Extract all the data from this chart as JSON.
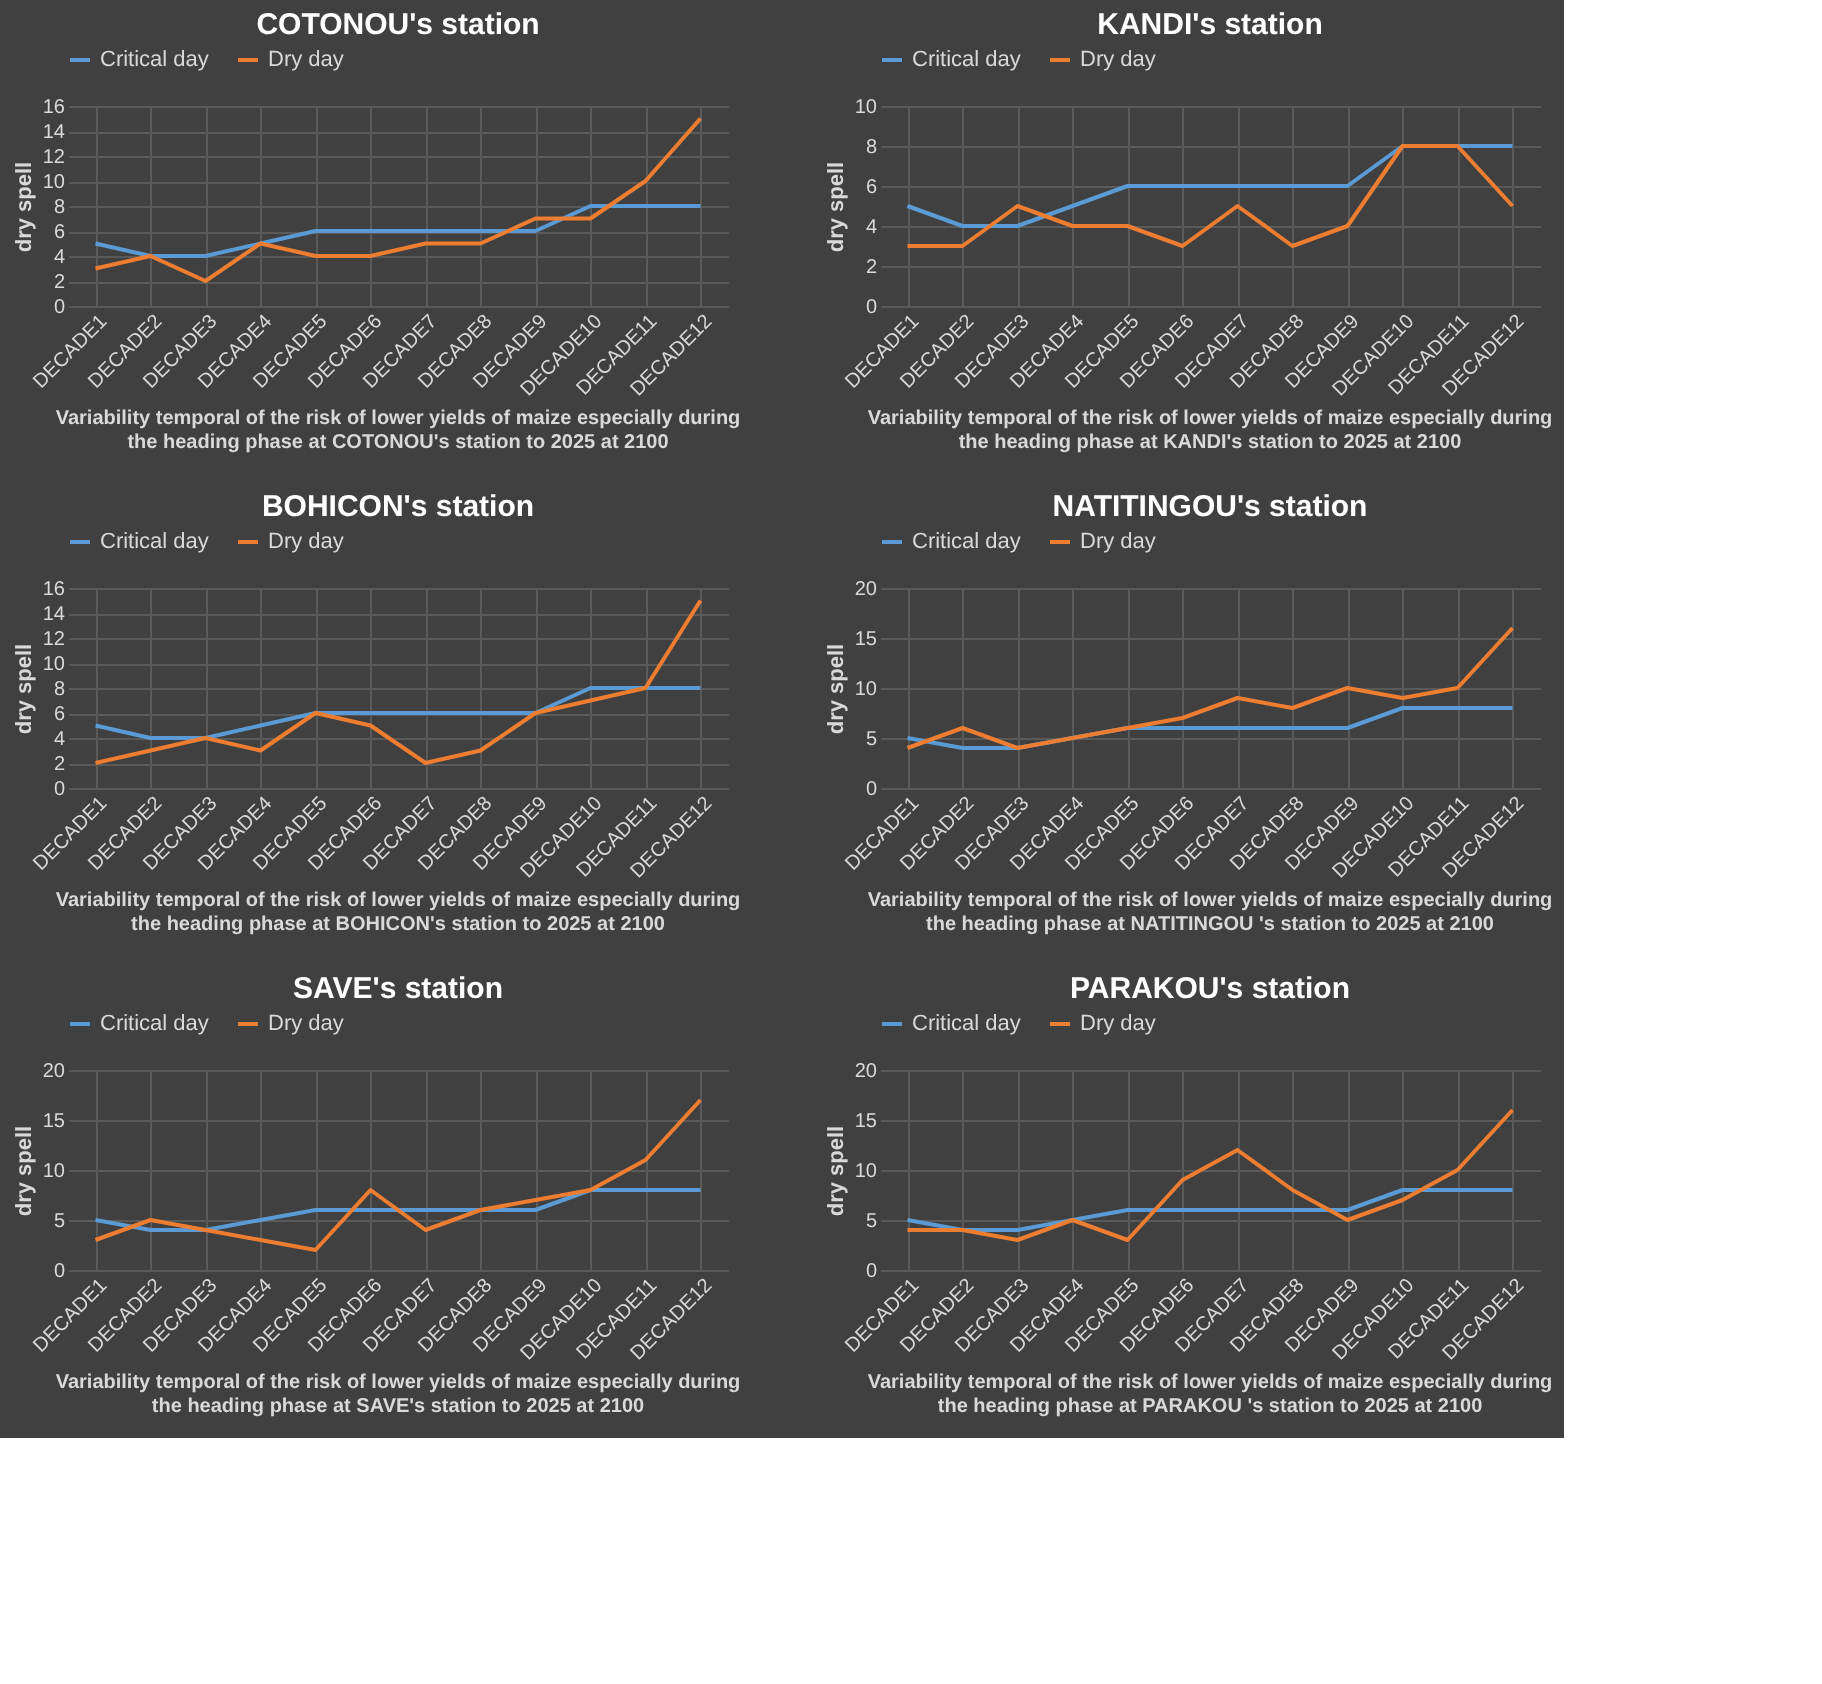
{
  "chart_data": [
    {
      "type": "line",
      "title": "COTONOU's station",
      "ylabel": "dry spell",
      "categories": [
        "DECADE1",
        "DECADE2",
        "DECADE3",
        "DECADE4",
        "DECADE5",
        "DECADE6",
        "DECADE7",
        "DECADE8",
        "DECADE9",
        "DECADE10",
        "DECADE11",
        "DECADE12"
      ],
      "series": [
        {
          "name": "Critical day",
          "color": "#5b9bd5",
          "values": [
            5,
            4,
            4,
            5,
            6,
            6,
            6,
            6,
            6,
            8,
            8,
            8
          ]
        },
        {
          "name": "Dry day",
          "color": "#ed7d31",
          "values": [
            3,
            4,
            2,
            5,
            4,
            4,
            5,
            5,
            7,
            7,
            10,
            15
          ]
        }
      ],
      "ylim": [
        0,
        16
      ],
      "yticks": [
        0,
        2,
        4,
        6,
        8,
        10,
        12,
        14,
        16
      ],
      "grid": true,
      "legend": "top",
      "marker": "none",
      "annotations": [
        "Variability temporal of the risk of lower yields of maize especially during the heading phase at COTONOU's station to  2025 at 2100"
      ]
    },
    {
      "type": "line",
      "title": "KANDI's station",
      "ylabel": "dry spell",
      "categories": [
        "DECADE1",
        "DECADE2",
        "DECADE3",
        "DECADE4",
        "DECADE5",
        "DECADE6",
        "DECADE7",
        "DECADE8",
        "DECADE9",
        "DECADE10",
        "DECADE11",
        "DECADE12"
      ],
      "series": [
        {
          "name": "Critical day",
          "color": "#5b9bd5",
          "values": [
            5,
            4,
            4,
            5,
            6,
            6,
            6,
            6,
            6,
            8,
            8,
            8
          ]
        },
        {
          "name": "Dry day",
          "color": "#ed7d31",
          "values": [
            3,
            3,
            5,
            4,
            4,
            3,
            5,
            3,
            4,
            8,
            8,
            5
          ]
        }
      ],
      "ylim": [
        0,
        10
      ],
      "yticks": [
        0,
        2,
        4,
        6,
        8,
        10
      ],
      "grid": true,
      "legend": "top",
      "marker": "none",
      "annotations": [
        "Variability temporal of the risk of lower yields of maize especially during the heading phase at KANDI's station to  2025 at 2100"
      ]
    },
    {
      "type": "line",
      "title": "BOHICON's station",
      "ylabel": "dry spell",
      "categories": [
        "DECADE1",
        "DECADE2",
        "DECADE3",
        "DECADE4",
        "DECADE5",
        "DECADE6",
        "DECADE7",
        "DECADE8",
        "DECADE9",
        "DECADE10",
        "DECADE11",
        "DECADE12"
      ],
      "series": [
        {
          "name": "Critical day",
          "color": "#5b9bd5",
          "values": [
            5,
            4,
            4,
            5,
            6,
            6,
            6,
            6,
            6,
            8,
            8,
            8
          ]
        },
        {
          "name": "Dry day",
          "color": "#ed7d31",
          "values": [
            2,
            3,
            4,
            3,
            6,
            5,
            2,
            3,
            6,
            7,
            8,
            15
          ]
        }
      ],
      "ylim": [
        0,
        16
      ],
      "yticks": [
        0,
        2,
        4,
        6,
        8,
        10,
        12,
        14,
        16
      ],
      "grid": true,
      "legend": "top",
      "marker": "none",
      "annotations": [
        "Variability temporal of the risk of lower yields of maize especially during the heading phase at BOHICON's station to  2025 at 2100"
      ]
    },
    {
      "type": "line",
      "title": "NATITINGOU's station",
      "ylabel": "dry spell",
      "categories": [
        "DECADE1",
        "DECADE2",
        "DECADE3",
        "DECADE4",
        "DECADE5",
        "DECADE6",
        "DECADE7",
        "DECADE8",
        "DECADE9",
        "DECADE10",
        "DECADE11",
        "DECADE12"
      ],
      "series": [
        {
          "name": "Critical day",
          "color": "#5b9bd5",
          "values": [
            5,
            4,
            4,
            5,
            6,
            6,
            6,
            6,
            6,
            8,
            8,
            8
          ]
        },
        {
          "name": "Dry day",
          "color": "#ed7d31",
          "values": [
            4,
            6,
            4,
            5,
            6,
            7,
            9,
            8,
            10,
            9,
            10,
            16
          ]
        }
      ],
      "ylim": [
        0,
        20
      ],
      "yticks": [
        0,
        5,
        10,
        15,
        20
      ],
      "grid": true,
      "legend": "top",
      "marker": "none",
      "annotations": [
        "Variability temporal of the risk of lower yields of maize especially during the heading phase at NATITINGOU 's station to  2025 at 2100"
      ]
    },
    {
      "type": "line",
      "title": "SAVE's station",
      "ylabel": "dry spell",
      "categories": [
        "DECADE1",
        "DECADE2",
        "DECADE3",
        "DECADE4",
        "DECADE5",
        "DECADE6",
        "DECADE7",
        "DECADE8",
        "DECADE9",
        "DECADE10",
        "DECADE11",
        "DECADE12"
      ],
      "series": [
        {
          "name": "Critical day",
          "color": "#5b9bd5",
          "values": [
            5,
            4,
            4,
            5,
            6,
            6,
            6,
            6,
            6,
            8,
            8,
            8
          ]
        },
        {
          "name": "Dry day",
          "color": "#ed7d31",
          "values": [
            3,
            5,
            4,
            3,
            2,
            8,
            4,
            6,
            7,
            8,
            11,
            17
          ]
        }
      ],
      "ylim": [
        0,
        20
      ],
      "yticks": [
        0,
        5,
        10,
        15,
        20
      ],
      "grid": true,
      "legend": "top",
      "marker": "none",
      "annotations": [
        "Variability temporal of the risk of lower yields of maize especially during the heading phase at SAVE's station to  2025 at 2100"
      ]
    },
    {
      "type": "line",
      "title": "PARAKOU's station",
      "ylabel": "dry spell",
      "categories": [
        "DECADE1",
        "DECADE2",
        "DECADE3",
        "DECADE4",
        "DECADE5",
        "DECADE6",
        "DECADE7",
        "DECADE8",
        "DECADE9",
        "DECADE10",
        "DECADE11",
        "DECADE12"
      ],
      "series": [
        {
          "name": "Critical day",
          "color": "#5b9bd5",
          "values": [
            5,
            4,
            4,
            5,
            6,
            6,
            6,
            6,
            6,
            8,
            8,
            8
          ]
        },
        {
          "name": "Dry day",
          "color": "#ed7d31",
          "values": [
            4,
            4,
            3,
            5,
            3,
            9,
            12,
            8,
            5,
            7,
            10,
            16
          ]
        }
      ],
      "ylim": [
        0,
        20
      ],
      "yticks": [
        0,
        5,
        10,
        15,
        20
      ],
      "grid": true,
      "legend": "top",
      "marker": "none",
      "annotations": [
        "Variability temporal of the risk of lower yields of maize especially during the heading phase at PARAKOU 's station to  2025 at 2100"
      ]
    }
  ]
}
